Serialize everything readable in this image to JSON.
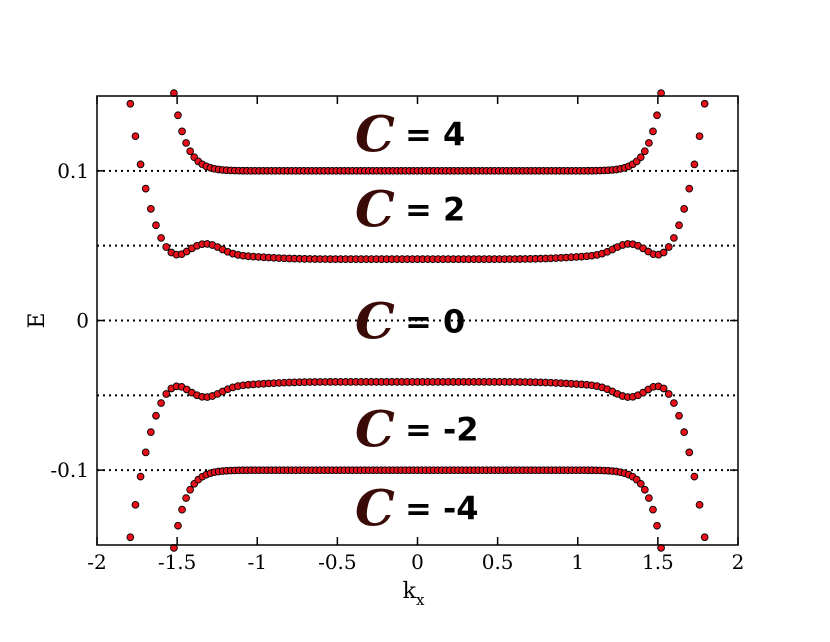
{
  "chart_data": {
    "type": "scatter",
    "xlabel": "k",
    "xlabel_subscript": "x",
    "ylabel": "E",
    "xlim": [
      -2,
      2
    ],
    "ylim": [
      -0.15,
      0.15
    ],
    "x_ticks": [
      {
        "value": -2,
        "label": "-2"
      },
      {
        "value": -1.5,
        "label": "-1.5"
      },
      {
        "value": -1,
        "label": "-1"
      },
      {
        "value": -0.5,
        "label": "-0.5"
      },
      {
        "value": 0,
        "label": "0"
      },
      {
        "value": 0.5,
        "label": "0.5"
      },
      {
        "value": 1,
        "label": "1"
      },
      {
        "value": 1.5,
        "label": "1.5"
      },
      {
        "value": 2,
        "label": "2"
      }
    ],
    "y_ticks": [
      {
        "value": -0.1,
        "label": "-0.1"
      },
      {
        "value": 0,
        "label": "0"
      },
      {
        "value": 0.1,
        "label": "0.1"
      }
    ],
    "reference_lines_y": [
      0.1,
      0.05,
      0,
      -0.05,
      -0.1
    ],
    "reference_line_style": "dotted",
    "marker_color": "#e8101a",
    "marker_edge_color": "#000000",
    "series": [
      {
        "x_range": [
          -1.92,
          1.92
        ],
        "points": 121,
        "shape": "outer_upper"
      },
      {
        "x_range": [
          -1.52,
          1.52
        ],
        "points": 121,
        "shape": "inner_upper"
      },
      {
        "x_range": [
          -1.52,
          1.52
        ],
        "points": 121,
        "shape": "inner_lower"
      },
      {
        "x_range": [
          -1.92,
          1.92
        ],
        "points": 121,
        "shape": "outer_lower"
      }
    ],
    "annotations": [
      {
        "symbol": "C",
        "text": "= 4",
        "y": 0.125
      },
      {
        "symbol": "C",
        "text": "= 2",
        "y": 0.075
      },
      {
        "symbol": "C",
        "text": "= 0",
        "y": 0.0
      },
      {
        "symbol": "C",
        "text": "= -2",
        "y": -0.072
      },
      {
        "symbol": "C",
        "text": "= -4",
        "y": -0.125
      }
    ]
  }
}
